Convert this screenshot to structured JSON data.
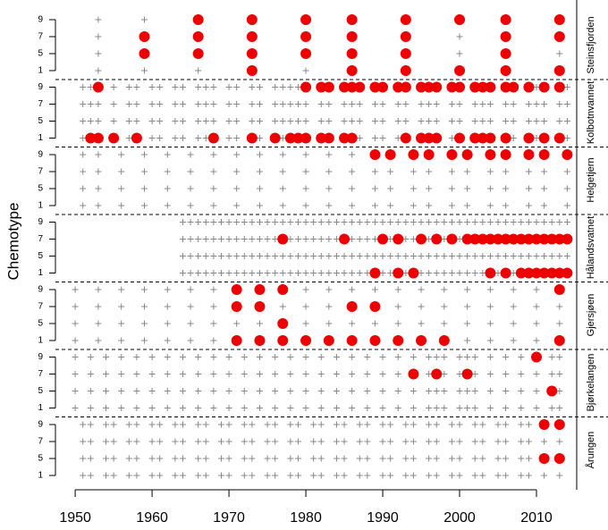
{
  "chart_data": {
    "type": "scatter",
    "y_label": "Chemotype",
    "xlim": [
      1945.8,
      2015
    ],
    "xticks": [
      1950,
      1960,
      1970,
      1980,
      1990,
      2000,
      2010
    ],
    "levels": [
      1,
      5,
      7,
      9
    ],
    "sampled_color": "#888888",
    "detected_color": "#ee0000",
    "panels": [
      {
        "name": "Steinsfjorden",
        "sampled": [
          1953,
          1959,
          1966,
          1973,
          1980,
          1986,
          1993,
          2000,
          2006,
          2013
        ],
        "detected": [
          {
            "level": 9,
            "years": [
              1966,
              1973,
              1980,
              1986,
              1993,
              2000,
              2006,
              2013
            ]
          },
          {
            "level": 7,
            "years": [
              1959,
              1966,
              1973,
              1980,
              1986,
              1993,
              2006,
              2013
            ]
          },
          {
            "level": 5,
            "years": [
              1959,
              1966,
              1973,
              1980,
              1986,
              1993,
              2006
            ]
          },
          {
            "level": 1,
            "years": [
              1973,
              1986,
              1993,
              2000,
              2006,
              2013
            ]
          }
        ]
      },
      {
        "name": "Kolbotnvannet",
        "sampled": [
          1951,
          1952,
          1953,
          1955,
          1957,
          1958,
          1960,
          1961,
          1963,
          1964,
          1966,
          1967,
          1968,
          1970,
          1971,
          1973,
          1974,
          1976,
          1977,
          1978,
          1979,
          1980,
          1982,
          1983,
          1985,
          1986,
          1987,
          1989,
          1990,
          1992,
          1993,
          1995,
          1996,
          1997,
          1999,
          2000,
          2002,
          2003,
          2004,
          2006,
          2007,
          2009,
          2010,
          2011,
          2013,
          2014
        ],
        "detected": [
          {
            "level": 9,
            "years": [
              1953,
              1980,
              1982,
              1983,
              1985,
              1986,
              1987,
              1989,
              1990,
              1992,
              1993,
              1995,
              1996,
              1997,
              1999,
              2000,
              2002,
              2003,
              2004,
              2006,
              2007,
              2009,
              2011,
              2013
            ]
          },
          {
            "level": 1,
            "years": [
              1952,
              1953,
              1955,
              1958,
              1968,
              1973,
              1976,
              1978,
              1979,
              1980,
              1982,
              1983,
              1985,
              1986,
              1993,
              1995,
              1996,
              1997,
              2000,
              2002,
              2003,
              2004,
              2006,
              2009,
              2011,
              2013
            ]
          }
        ]
      },
      {
        "name": "Helgetjern",
        "sampled": [
          1951,
          1953,
          1956,
          1959,
          1962,
          1965,
          1968,
          1971,
          1974,
          1977,
          1980,
          1983,
          1986,
          1989,
          1991,
          1994,
          1996,
          1999,
          2001,
          2004,
          2006,
          2009,
          2011,
          2014
        ],
        "detected": [
          {
            "level": 9,
            "years": [
              1989,
              1991,
              1994,
              1996,
              1999,
              2001,
              2004,
              2006,
              2009,
              2011,
              2014
            ]
          }
        ]
      },
      {
        "name": "Hålandsvatnet",
        "sampled": [
          1964,
          1965,
          1966,
          1967,
          1968,
          1969,
          1970,
          1971,
          1972,
          1973,
          1974,
          1975,
          1976,
          1977,
          1978,
          1979,
          1980,
          1981,
          1982,
          1983,
          1984,
          1985,
          1986,
          1987,
          1988,
          1989,
          1990,
          1991,
          1992,
          1993,
          1994,
          1995,
          1996,
          1997,
          1998,
          1999,
          2000,
          2001,
          2002,
          2003,
          2004,
          2005,
          2006,
          2007,
          2008,
          2009,
          2010,
          2011,
          2012,
          2013,
          2014
        ],
        "detected": [
          {
            "level": 7,
            "years": [
              1977,
              1985,
              1990,
              1992,
              1995,
              1997,
              1999,
              2001,
              2002,
              2003,
              2004,
              2005,
              2006,
              2007,
              2008,
              2009,
              2010,
              2011,
              2012,
              2013,
              2014
            ]
          },
          {
            "level": 1,
            "years": [
              1989,
              1992,
              1994,
              2004,
              2006,
              2008,
              2009,
              2010,
              2011,
              2012,
              2013,
              2014
            ]
          }
        ]
      },
      {
        "name": "Gjersjøen",
        "sampled": [
          1950,
          1953,
          1956,
          1959,
          1962,
          1965,
          1968,
          1971,
          1974,
          1977,
          1980,
          1983,
          1986,
          1989,
          1992,
          1995,
          1998,
          2001,
          2004,
          2007,
          2010,
          2013
        ],
        "detected": [
          {
            "level": 9,
            "years": [
              1971,
              1974,
              1977,
              2013
            ]
          },
          {
            "level": 7,
            "years": [
              1971,
              1974,
              1986,
              1989
            ]
          },
          {
            "level": 5,
            "years": [
              1977
            ]
          },
          {
            "level": 1,
            "years": [
              1971,
              1974,
              1977,
              1980,
              1983,
              1986,
              1989,
              1992,
              1995,
              1998,
              2013
            ]
          }
        ]
      },
      {
        "name": "Bjørkelangen",
        "sampled": [
          1950,
          1952,
          1954,
          1956,
          1958,
          1960,
          1962,
          1964,
          1966,
          1968,
          1970,
          1972,
          1974,
          1976,
          1978,
          1980,
          1982,
          1984,
          1986,
          1988,
          1990,
          1992,
          1994,
          1996,
          1997,
          1998,
          2000,
          2001,
          2002,
          2004,
          2006,
          2008,
          2010,
          2012,
          2013
        ],
        "detected": [
          {
            "level": 9,
            "years": [
              2010
            ]
          },
          {
            "level": 7,
            "years": [
              1994,
              1997,
              2001
            ]
          },
          {
            "level": 5,
            "years": [
              2012
            ]
          }
        ]
      },
      {
        "name": "Årungen",
        "sampled": [
          1951,
          1952,
          1954,
          1955,
          1957,
          1958,
          1960,
          1961,
          1963,
          1964,
          1966,
          1967,
          1969,
          1970,
          1972,
          1973,
          1975,
          1976,
          1978,
          1979,
          1981,
          1982,
          1984,
          1985,
          1987,
          1988,
          1990,
          1991,
          1993,
          1994,
          1996,
          1997,
          1999,
          2000,
          2002,
          2003,
          2005,
          2006,
          2008,
          2009,
          2011,
          2013
        ],
        "detected": [
          {
            "level": 9,
            "years": [
              2011,
              2013
            ]
          },
          {
            "level": 5,
            "years": [
              2011,
              2013
            ]
          }
        ]
      }
    ]
  }
}
